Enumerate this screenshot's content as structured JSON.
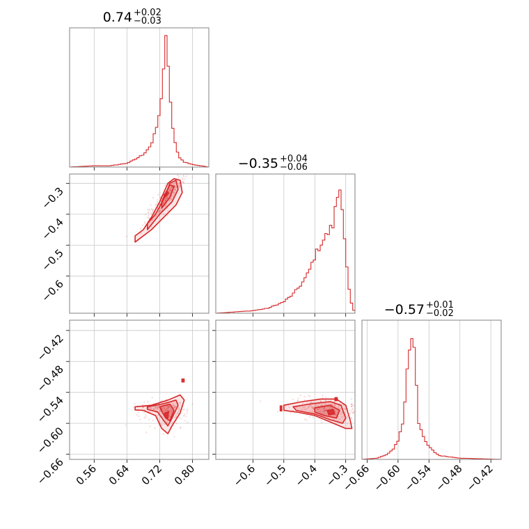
{
  "chart_data": {
    "type": "corner",
    "color": "#d62728",
    "parameters": [
      {
        "median": 0.74,
        "plus": "0.02",
        "minus": "0.03",
        "median_label": "0.74",
        "range": [
          0.5,
          0.84
        ],
        "ticks": [
          "0.56",
          "0.64",
          "0.72",
          "0.80"
        ]
      },
      {
        "median": -0.35,
        "plus": "0.04",
        "minus": "0.06",
        "median_label": "−0.35",
        "range": [
          -0.72,
          -0.27
        ],
        "ticks": [
          "−0.6",
          "−0.5",
          "−0.4",
          "−0.3"
        ],
        "ticks_left": [
          "−0.3",
          "−0.4",
          "−0.5",
          "−0.6"
        ]
      },
      {
        "median": -0.57,
        "plus": "0.01",
        "minus": "0.02",
        "median_label": "−0.57",
        "range": [
          -0.67,
          -0.4
        ],
        "ticks": [
          "−0.66",
          "−0.60",
          "−0.54",
          "−0.48",
          "−0.42"
        ],
        "ticks_left": [
          "−0.42",
          "−0.48",
          "−0.54",
          "−0.60",
          "−0.66"
        ]
      }
    ],
    "histograms": [
      {
        "param": 0,
        "x": [
          0.5,
          0.56,
          0.6,
          0.64,
          0.66,
          0.68,
          0.7,
          0.71,
          0.72,
          0.725,
          0.73,
          0.735,
          0.74,
          0.745,
          0.75,
          0.76,
          0.77,
          0.78,
          0.8,
          0.84
        ],
        "density": [
          0,
          0.01,
          0.01,
          0.03,
          0.06,
          0.1,
          0.18,
          0.28,
          0.42,
          0.6,
          0.8,
          1.0,
          0.8,
          0.6,
          0.35,
          0.14,
          0.07,
          0.04,
          0.02,
          0
        ]
      },
      {
        "param": 1,
        "x": [
          -0.72,
          -0.66,
          -0.6,
          -0.55,
          -0.5,
          -0.47,
          -0.44,
          -0.42,
          -0.4,
          -0.38,
          -0.36,
          -0.35,
          -0.34,
          -0.33,
          -0.32,
          -0.31,
          -0.3,
          -0.29,
          -0.28,
          -0.27
        ],
        "density": [
          0,
          0.01,
          0.02,
          0.04,
          0.09,
          0.15,
          0.24,
          0.32,
          0.45,
          0.55,
          0.62,
          0.66,
          0.7,
          0.88,
          1.0,
          0.85,
          0.45,
          0.2,
          0.06,
          0
        ]
      },
      {
        "param": 2,
        "x": [
          -0.67,
          -0.64,
          -0.62,
          -0.61,
          -0.6,
          -0.59,
          -0.585,
          -0.58,
          -0.575,
          -0.57,
          -0.565,
          -0.56,
          -0.55,
          -0.54,
          -0.53,
          -0.52,
          -0.5,
          -0.48,
          -0.44,
          -0.4
        ],
        "density": [
          0,
          0.01,
          0.04,
          0.08,
          0.15,
          0.3,
          0.55,
          0.82,
          0.95,
          1.0,
          0.65,
          0.3,
          0.16,
          0.1,
          0.06,
          0.03,
          0.02,
          0.01,
          0.005,
          0
        ]
      }
    ],
    "joint_2d": [
      {
        "params": [
          0,
          1
        ],
        "center": [
          0.735,
          -0.345
        ],
        "orientation": "elongated along positive diagonal",
        "extent_x": [
          0.66,
          0.78
        ],
        "extent_y": [
          -0.49,
          -0.29
        ]
      },
      {
        "params": [
          0,
          2
        ],
        "center": [
          0.735,
          -0.57
        ],
        "orientation": "horizontal with lower lobe",
        "extent_x": [
          0.66,
          0.78
        ],
        "extent_y": [
          -0.62,
          -0.55
        ]
      },
      {
        "params": [
          1,
          2
        ],
        "center": [
          -0.35,
          -0.575
        ],
        "orientation": "horizontal elongated",
        "extent_x": [
          -0.5,
          -0.28
        ],
        "extent_y": [
          -0.61,
          -0.55
        ]
      }
    ],
    "grid": true
  }
}
